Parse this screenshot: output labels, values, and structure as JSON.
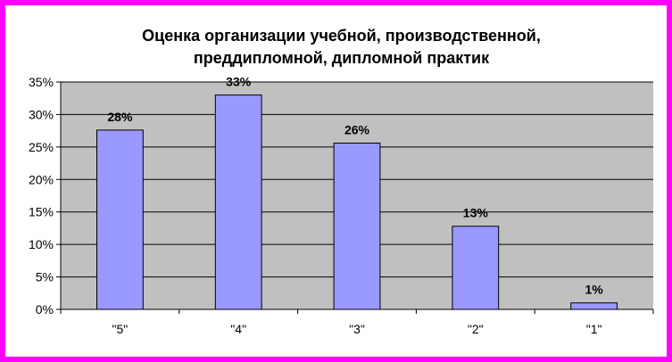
{
  "chart_data": {
    "type": "bar",
    "title_lines": [
      "Оценка организации учебной, производственной,",
      "преддипломной, дипломной практик"
    ],
    "categories": [
      "\"5\"",
      "\"4\"",
      "\"3\"",
      "\"2\"",
      "\"1\""
    ],
    "values": [
      27.6,
      33.0,
      25.6,
      12.8,
      1.0
    ],
    "data_labels": [
      "28%",
      "33%",
      "26%",
      "13%",
      "1%"
    ],
    "ylim": [
      0,
      35
    ],
    "y_ticks": [
      "0%",
      "5%",
      "10%",
      "15%",
      "20%",
      "25%",
      "30%",
      "35%"
    ],
    "grid": true,
    "legend": "none",
    "colors": {
      "bar": "#9999ff",
      "plot_background": "#c0c0c0",
      "frame_border": "#ff00ff"
    }
  }
}
